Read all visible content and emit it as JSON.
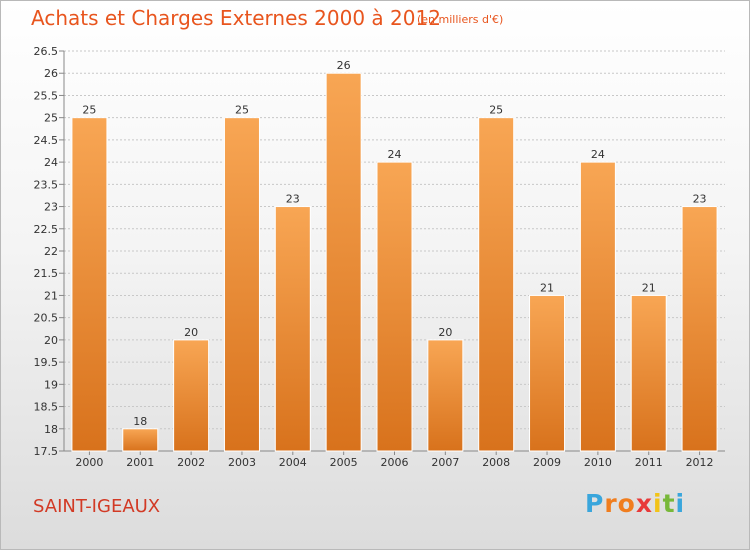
{
  "chart_title": "Achats et Charges Externes 2000 à 2012",
  "chart_subtitle": "(en milliers d'€)",
  "commune": "SAINT-IGEAUX",
  "logo": {
    "letters": [
      "P",
      "r",
      "o",
      "x",
      "i",
      "t",
      "i"
    ],
    "colors": [
      "#3aa6dc",
      "#f07d1e",
      "#f07d1e",
      "#e83a3a",
      "#f2c318",
      "#78b83a",
      "#3aa6dc"
    ]
  },
  "colors": {
    "bar_top": "#f8a654",
    "bar_bottom": "#d8721c",
    "bar_stroke": "#ffffff",
    "grid": "#c8c8c8"
  },
  "chart_data": {
    "type": "bar",
    "title": "Achats et Charges Externes 2000 à 2012",
    "subtitle": "(en milliers d'€)",
    "xlabel": "",
    "ylabel": "",
    "categories": [
      "2000",
      "2001",
      "2002",
      "2003",
      "2004",
      "2005",
      "2006",
      "2007",
      "2008",
      "2009",
      "2010",
      "2011",
      "2012"
    ],
    "values": [
      25,
      18,
      20,
      25,
      23,
      26,
      24,
      20,
      25,
      21,
      24,
      21,
      23
    ],
    "value_labels": [
      "25",
      "18",
      "20",
      "25",
      "23",
      "26",
      "24",
      "20",
      "25",
      "21",
      "24",
      "21",
      "23"
    ],
    "ylim": [
      17.5,
      26.5
    ],
    "yticks": [
      17.5,
      18,
      18.5,
      19,
      19.5,
      20,
      20.5,
      21,
      21.5,
      22,
      22.5,
      23,
      23.5,
      24,
      24.5,
      25,
      25.5,
      26,
      26.5
    ],
    "ytick_labels": [
      "17.5",
      "18",
      "18.5",
      "19",
      "19.5",
      "20",
      "20.5",
      "21",
      "21.5",
      "22",
      "22.5",
      "23",
      "23.5",
      "24",
      "24.5",
      "25",
      "25.5",
      "26",
      "26.5"
    ],
    "grid": true,
    "legend": "none"
  }
}
